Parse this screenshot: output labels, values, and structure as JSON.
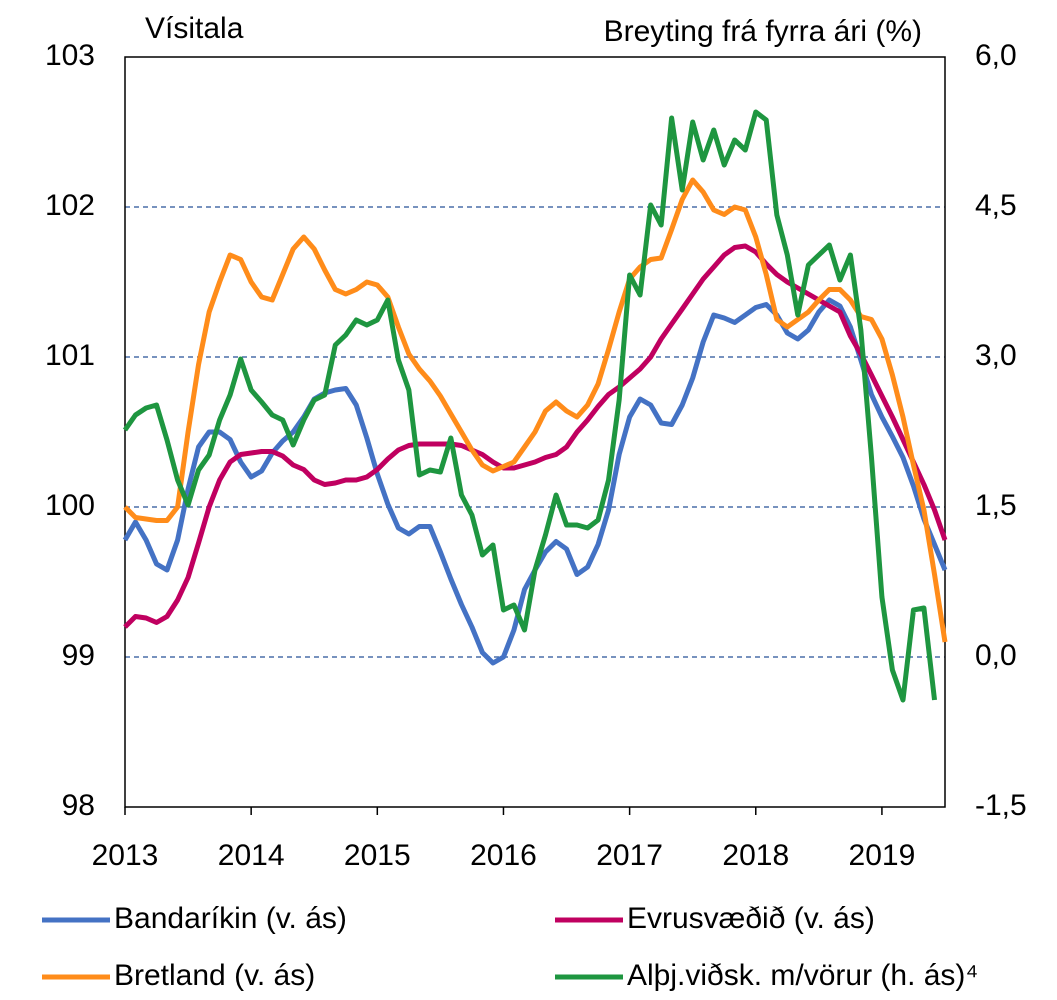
{
  "chart_data": {
    "type": "line",
    "y_label": "Vísitala",
    "y2_label": "Breyting frá fyrra ári (%)",
    "x": [
      2013,
      2013.083,
      2013.167,
      2013.25,
      2013.333,
      2013.417,
      2013.5,
      2013.583,
      2013.667,
      2013.75,
      2013.833,
      2013.917,
      2014,
      2014.083,
      2014.167,
      2014.25,
      2014.333,
      2014.417,
      2014.5,
      2014.583,
      2014.667,
      2014.75,
      2014.833,
      2014.917,
      2015,
      2015.083,
      2015.167,
      2015.25,
      2015.333,
      2015.417,
      2015.5,
      2015.583,
      2015.667,
      2015.75,
      2015.833,
      2015.917,
      2016,
      2016.083,
      2016.167,
      2016.25,
      2016.333,
      2016.417,
      2016.5,
      2016.583,
      2016.667,
      2016.75,
      2016.833,
      2016.917,
      2017,
      2017.083,
      2017.167,
      2017.25,
      2017.333,
      2017.417,
      2017.5,
      2017.583,
      2017.667,
      2017.75,
      2017.833,
      2017.917,
      2018,
      2018.083,
      2018.167,
      2018.25,
      2018.333,
      2018.417,
      2018.5,
      2018.583,
      2018.667,
      2018.75,
      2018.833,
      2018.917,
      2019,
      2019.083,
      2019.167,
      2019.25,
      2019.333,
      2019.417,
      2019.5
    ],
    "xlim": [
      2013,
      2019.5
    ],
    "xticks": [
      2013,
      2014,
      2015,
      2016,
      2017,
      2018,
      2019
    ],
    "ylim": [
      98,
      103
    ],
    "yticks": [
      98,
      99,
      100,
      101,
      102,
      103
    ],
    "y2lim": [
      -1.5,
      6
    ],
    "y2ticks": [
      {
        "value": -1.5,
        "label": "-1,5"
      },
      {
        "value": 0,
        "label": "0,0"
      },
      {
        "value": 1.5,
        "label": "1,5"
      },
      {
        "value": 3,
        "label": "3,0"
      },
      {
        "value": 4.5,
        "label": "4,5"
      },
      {
        "value": 6,
        "label": "6,0"
      }
    ],
    "grid": true,
    "series": [
      {
        "name": "Bandaríkin (v. ás)",
        "color": "#4472c4",
        "values": [
          99.78,
          99.9,
          99.78,
          99.62,
          99.58,
          99.78,
          100.12,
          100.4,
          100.5,
          100.5,
          100.45,
          100.3,
          100.2,
          100.24,
          100.36,
          100.44,
          100.5,
          100.6,
          100.72,
          100.76,
          100.78,
          100.79,
          100.68,
          100.46,
          100.22,
          100.02,
          99.86,
          99.82,
          99.87,
          99.87,
          99.7,
          99.52,
          99.35,
          99.2,
          99.03,
          98.96,
          99.0,
          99.18,
          99.45,
          99.58,
          99.7,
          99.77,
          99.72,
          99.55,
          99.6,
          99.75,
          99.98,
          100.35,
          100.6,
          100.72,
          100.68,
          100.56,
          100.55,
          100.68,
          100.86,
          101.1,
          101.28,
          101.26,
          101.23,
          101.28,
          101.33,
          101.35,
          101.28,
          101.16,
          101.12,
          101.18,
          101.3,
          101.38,
          101.34,
          101.2,
          100.98,
          100.75,
          100.6,
          100.47,
          100.33,
          100.14,
          99.92,
          99.75,
          99.58
        ]
      },
      {
        "name": "Evrusvæðið (v. ás)",
        "color": "#c00060",
        "values": [
          99.2,
          99.27,
          99.26,
          99.23,
          99.27,
          99.38,
          99.53,
          99.76,
          100.0,
          100.18,
          100.3,
          100.35,
          100.36,
          100.37,
          100.37,
          100.34,
          100.28,
          100.25,
          100.18,
          100.15,
          100.16,
          100.18,
          100.18,
          100.2,
          100.25,
          100.32,
          100.38,
          100.41,
          100.42,
          100.42,
          100.42,
          100.42,
          100.41,
          100.38,
          100.35,
          100.3,
          100.26,
          100.26,
          100.28,
          100.3,
          100.33,
          100.35,
          100.4,
          100.5,
          100.58,
          100.67,
          100.75,
          100.8,
          100.86,
          100.92,
          101.0,
          101.12,
          101.22,
          101.32,
          101.42,
          101.52,
          101.6,
          101.68,
          101.73,
          101.74,
          101.7,
          101.62,
          101.55,
          101.5,
          101.46,
          101.42,
          101.38,
          101.34,
          101.3,
          101.14,
          101.02,
          100.88,
          100.74,
          100.6,
          100.45,
          100.3,
          100.15,
          99.98,
          99.78
        ]
      },
      {
        "name": "Bretland (v. ás)",
        "color": "#ff8c1a",
        "values": [
          100.0,
          99.93,
          99.92,
          99.91,
          99.91,
          100.0,
          100.5,
          100.95,
          101.3,
          101.5,
          101.68,
          101.65,
          101.5,
          101.4,
          101.38,
          101.55,
          101.72,
          101.8,
          101.72,
          101.58,
          101.45,
          101.42,
          101.45,
          101.5,
          101.48,
          101.4,
          101.2,
          101.02,
          100.92,
          100.84,
          100.74,
          100.62,
          100.5,
          100.38,
          100.28,
          100.24,
          100.27,
          100.3,
          100.4,
          100.5,
          100.64,
          100.7,
          100.64,
          100.6,
          100.68,
          100.82,
          101.05,
          101.3,
          101.52,
          101.6,
          101.65,
          101.66,
          101.85,
          102.05,
          102.18,
          102.1,
          101.98,
          101.95,
          102.0,
          101.98,
          101.8,
          101.55,
          101.25,
          101.2,
          101.25,
          101.3,
          101.38,
          101.45,
          101.45,
          101.38,
          101.27,
          101.25,
          101.12,
          100.88,
          100.6,
          100.28,
          99.98,
          99.55,
          99.1
        ]
      },
      {
        "name": "Alþj.viðsk. m/vörur (h. ás)⁴",
        "color": "#1e9640",
        "axis": "y2",
        "values": [
          2.27,
          2.42,
          2.49,
          2.52,
          2.17,
          1.77,
          1.52,
          1.87,
          2.02,
          2.37,
          2.62,
          2.98,
          2.67,
          2.55,
          2.42,
          2.37,
          2.12,
          2.37,
          2.57,
          2.62,
          3.12,
          3.22,
          3.37,
          3.32,
          3.37,
          3.57,
          2.97,
          2.67,
          1.82,
          1.87,
          1.85,
          2.19,
          1.62,
          1.42,
          1.02,
          1.12,
          0.47,
          0.52,
          0.27,
          0.87,
          1.22,
          1.62,
          1.32,
          1.32,
          1.29,
          1.37,
          1.77,
          2.57,
          3.82,
          3.62,
          4.52,
          4.32,
          5.39,
          4.67,
          5.35,
          4.97,
          5.27,
          4.92,
          5.17,
          5.07,
          5.45,
          5.37,
          4.42,
          4.02,
          3.42,
          3.92,
          4.02,
          4.12,
          3.77,
          4.02,
          3.27,
          2.0,
          0.6,
          -0.13,
          -0.43,
          0.47,
          0.49,
          -0.43,
          null
        ]
      }
    ]
  }
}
